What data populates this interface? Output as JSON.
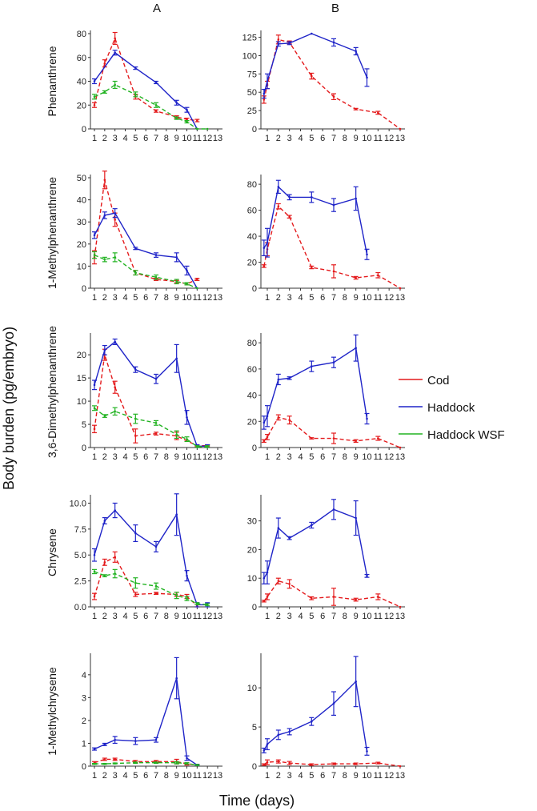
{
  "col_labels": [
    "A",
    "B"
  ],
  "ylabel": "Body burden (pg/embryo)",
  "xlabel": "Time (days)",
  "colors": {
    "Cod": "#e41a1c",
    "Haddock": "#1f24c8",
    "Haddock WSF": "#22b322"
  },
  "legend": [
    "Cod",
    "Haddock",
    "Haddock WSF"
  ],
  "chart_data": [
    {
      "type": "line",
      "row": "Phenanthrene",
      "panel": "A",
      "ylim": [
        0,
        80
      ],
      "yticks": [
        0,
        20,
        40,
        60,
        80
      ],
      "x_ticks": [
        "1",
        "2",
        "3",
        "4",
        "5",
        "6",
        "7",
        "8",
        "9",
        "10",
        "11",
        "12",
        "13"
      ],
      "series": [
        {
          "name": "Cod",
          "x": [
            1,
            2,
            3,
            5,
            7,
            9,
            10,
            11
          ],
          "y": [
            20,
            55,
            76,
            27,
            15,
            10,
            8,
            7
          ],
          "err": [
            2,
            3,
            5,
            2,
            1,
            1,
            1,
            1
          ]
        },
        {
          "name": "Haddock",
          "x": [
            1,
            3,
            5,
            7,
            9,
            10,
            11
          ],
          "y": [
            40,
            64,
            51,
            39,
            22,
            16,
            0
          ],
          "err": [
            2,
            2,
            1,
            1,
            2,
            2,
            0
          ]
        },
        {
          "name": "Haddock WSF",
          "x": [
            1,
            2,
            3,
            5,
            7,
            9,
            10,
            11,
            12
          ],
          "y": [
            27,
            31,
            37,
            29,
            20,
            9,
            6,
            0,
            0
          ],
          "err": [
            2,
            1,
            3,
            2,
            2,
            1,
            1,
            0,
            0
          ]
        }
      ]
    },
    {
      "type": "line",
      "row": "Phenanthrene",
      "panel": "B",
      "ylim": [
        0,
        130
      ],
      "yticks": [
        0,
        25,
        50,
        75,
        100,
        125
      ],
      "x_ticks": [
        "1",
        "2",
        "3",
        "4",
        "5",
        "6",
        "7",
        "8",
        "9",
        "10",
        "11",
        "12",
        "13"
      ],
      "series": [
        {
          "name": "Cod",
          "x": [
            0.7,
            1,
            2,
            3,
            5,
            7,
            9,
            11,
            13
          ],
          "y": [
            40,
            60,
            122,
            118,
            72,
            44,
            27,
            22,
            0
          ],
          "err": [
            5,
            5,
            6,
            2,
            4,
            4,
            1,
            2,
            0
          ]
        },
        {
          "name": "Haddock",
          "x": [
            0.7,
            1,
            2,
            3,
            5,
            7,
            9,
            10
          ],
          "y": [
            48,
            65,
            116,
            117,
            130,
            118,
            106,
            70
          ],
          "err": [
            6,
            10,
            3,
            2,
            0,
            5,
            5,
            12
          ]
        }
      ]
    },
    {
      "type": "line",
      "row": "1-Methylphenanthrene",
      "panel": "A",
      "ylim": [
        0,
        50
      ],
      "yticks": [
        0,
        10,
        20,
        30,
        40,
        50
      ],
      "x_ticks": [
        "1",
        "2",
        "3",
        "4",
        "5",
        "6",
        "7",
        "8",
        "9",
        "10",
        "11",
        "12",
        "13"
      ],
      "series": [
        {
          "name": "Cod",
          "x": [
            1,
            2,
            3,
            5,
            7,
            9,
            10,
            11
          ],
          "y": [
            14,
            49,
            31,
            7,
            4,
            3,
            2,
            4
          ],
          "err": [
            3,
            4,
            3,
            1,
            0.5,
            0.5,
            0.5,
            0.5
          ]
        },
        {
          "name": "Haddock",
          "x": [
            1,
            2,
            3,
            5,
            7,
            9,
            10,
            11
          ],
          "y": [
            24,
            33,
            34,
            18,
            15,
            14,
            8,
            0
          ],
          "err": [
            1.5,
            1.5,
            2,
            0.5,
            1,
            2,
            2,
            0
          ]
        },
        {
          "name": "Haddock WSF",
          "x": [
            1,
            2,
            3,
            5,
            7,
            9,
            10,
            11
          ],
          "y": [
            15,
            13,
            14,
            7,
            5,
            3,
            2,
            0
          ],
          "err": [
            1.5,
            1,
            2,
            1,
            1,
            1,
            0.5,
            0
          ]
        }
      ]
    },
    {
      "type": "line",
      "row": "1-Methylphenanthrene",
      "panel": "B",
      "ylim": [
        0,
        85
      ],
      "yticks": [
        0,
        20,
        40,
        60,
        80
      ],
      "x_ticks": [
        "1",
        "2",
        "3",
        "4",
        "5",
        "6",
        "7",
        "8",
        "9",
        "10",
        "11",
        "12",
        "13"
      ],
      "series": [
        {
          "name": "Cod",
          "x": [
            0.7,
            1,
            2,
            3,
            5,
            7,
            9,
            11,
            13
          ],
          "y": [
            17,
            30,
            63,
            55,
            16,
            13,
            8,
            10,
            0
          ],
          "err": [
            1,
            5,
            2,
            1,
            1,
            5,
            1,
            2,
            0
          ]
        },
        {
          "name": "Haddock",
          "x": [
            0.7,
            1,
            2,
            3,
            5,
            7,
            9,
            10
          ],
          "y": [
            31,
            35,
            78,
            70,
            70,
            64,
            69,
            26
          ],
          "err": [
            6,
            11,
            5,
            2,
            4,
            5,
            9,
            4
          ]
        }
      ]
    },
    {
      "type": "line",
      "row": "3,6-Dimethylphenanthrene",
      "panel": "A",
      "ylim": [
        0,
        24
      ],
      "yticks": [
        0,
        5,
        10,
        15,
        20
      ],
      "x_ticks": [
        "1",
        "2",
        "3",
        "4",
        "5",
        "6",
        "7",
        "8",
        "9",
        "10",
        "11",
        "12",
        "13"
      ],
      "series": [
        {
          "name": "Cod",
          "x": [
            1,
            2,
            3,
            5,
            7,
            9,
            11,
            12
          ],
          "y": [
            4,
            20,
            13,
            2.5,
            3,
            2.5,
            0.4,
            0.4
          ],
          "err": [
            0.8,
            1.2,
            1.3,
            1.5,
            0.3,
            0.8,
            0.2,
            0.2
          ]
        },
        {
          "name": "Haddock",
          "x": [
            1,
            2,
            3,
            5,
            7,
            9,
            10,
            11,
            12
          ],
          "y": [
            13.5,
            21,
            22.8,
            16.8,
            14.8,
            19.2,
            6.5,
            0.3,
            0.3
          ],
          "err": [
            1,
            1,
            0.6,
            0.6,
            1,
            3,
            1.5,
            0.3,
            0.3
          ]
        },
        {
          "name": "Haddock WSF",
          "x": [
            1,
            2,
            3,
            5,
            7,
            9,
            10,
            11,
            12
          ],
          "y": [
            8.5,
            6.8,
            7.8,
            6.2,
            5.3,
            2.8,
            1.8,
            0.2,
            0.2
          ],
          "err": [
            0.5,
            0.3,
            0.8,
            1,
            0.5,
            0.8,
            0.5,
            0.2,
            0.2
          ]
        }
      ]
    },
    {
      "type": "line",
      "row": "3,6-Dimethylphenanthrene",
      "panel": "B",
      "ylim": [
        0,
        85
      ],
      "yticks": [
        0,
        20,
        40,
        60,
        80
      ],
      "x_ticks": [
        "1",
        "2",
        "3",
        "4",
        "5",
        "6",
        "7",
        "8",
        "9",
        "10",
        "11",
        "12",
        "13"
      ],
      "series": [
        {
          "name": "Cod",
          "x": [
            0.7,
            1,
            2,
            3,
            5,
            7,
            9,
            11,
            13
          ],
          "y": [
            5,
            8,
            23,
            21,
            7,
            7,
            5,
            7,
            0
          ],
          "err": [
            1,
            2,
            2,
            3,
            0.5,
            4,
            1,
            1.5,
            0
          ]
        },
        {
          "name": "Haddock",
          "x": [
            0.7,
            1,
            2,
            3,
            5,
            7,
            9,
            10
          ],
          "y": [
            19,
            24,
            52,
            53,
            62,
            65,
            76,
            22
          ],
          "err": [
            5,
            8,
            4,
            1,
            4,
            4,
            10,
            4
          ]
        }
      ]
    },
    {
      "type": "line",
      "row": "Chrysene",
      "panel": "A",
      "ylim": [
        0,
        10.5
      ],
      "yticks": [
        0.0,
        2.5,
        5.0,
        7.5,
        10.0
      ],
      "x_ticks": [
        "1",
        "2",
        "3",
        "4",
        "5",
        "6",
        "7",
        "8",
        "9",
        "10",
        "11",
        "12",
        "13"
      ],
      "series": [
        {
          "name": "Cod",
          "x": [
            1,
            2,
            3,
            5,
            7,
            9,
            10,
            11
          ],
          "y": [
            1.0,
            4.3,
            4.8,
            1.2,
            1.3,
            1.2,
            1.0,
            0.1
          ],
          "err": [
            0.3,
            0.3,
            0.5,
            0.2,
            0.1,
            0.2,
            0.2,
            0.1
          ]
        },
        {
          "name": "Haddock",
          "x": [
            1,
            2,
            3,
            5,
            7,
            9,
            10,
            11,
            12
          ],
          "y": [
            5.0,
            8.3,
            9.3,
            7.1,
            5.8,
            8.9,
            3.0,
            0.2,
            0.2
          ],
          "err": [
            0.6,
            0.3,
            0.7,
            0.8,
            0.5,
            2,
            0.5,
            0.2,
            0.2
          ]
        },
        {
          "name": "Haddock WSF",
          "x": [
            1,
            2,
            3,
            5,
            7,
            9,
            10,
            11,
            12
          ],
          "y": [
            3.4,
            3.0,
            3.2,
            2.3,
            2.0,
            1.1,
            0.8,
            0.3,
            0.2
          ],
          "err": [
            0.2,
            0.1,
            0.4,
            0.5,
            0.3,
            0.3,
            0.2,
            0.1,
            0.1
          ]
        }
      ]
    },
    {
      "type": "line",
      "row": "Chrysene",
      "panel": "B",
      "ylim": [
        0,
        38
      ],
      "yticks": [
        0,
        10,
        20,
        30
      ],
      "x_ticks": [
        "1",
        "2",
        "3",
        "4",
        "5",
        "6",
        "7",
        "8",
        "9",
        "10",
        "11",
        "12",
        "13"
      ],
      "series": [
        {
          "name": "Cod",
          "x": [
            0.7,
            1,
            2,
            3,
            5,
            7,
            9,
            11,
            13
          ],
          "y": [
            2,
            3.5,
            9,
            8,
            3,
            3.5,
            2.5,
            3.5,
            0
          ],
          "err": [
            0.3,
            1,
            1,
            1.5,
            0.5,
            3,
            0.5,
            1,
            0
          ]
        },
        {
          "name": "Haddock",
          "x": [
            0.7,
            1,
            2,
            3,
            5,
            7,
            9,
            10
          ],
          "y": [
            10,
            12,
            27.5,
            24,
            28.5,
            34,
            31,
            10.8
          ],
          "err": [
            2,
            4,
            3.5,
            0.5,
            1,
            3.5,
            6,
            0.5
          ]
        }
      ]
    },
    {
      "type": "line",
      "row": "1-Methylchrysene",
      "panel": "A",
      "ylim": [
        0,
        4.8
      ],
      "yticks": [
        0,
        1,
        2,
        3,
        4
      ],
      "x_ticks": [
        "1",
        "2",
        "3",
        "4",
        "5",
        "6",
        "7",
        "8",
        "9",
        "10",
        "11",
        "12",
        "13"
      ],
      "series": [
        {
          "name": "Cod",
          "x": [
            1,
            2,
            3,
            5,
            7,
            9,
            10,
            11
          ],
          "y": [
            0.15,
            0.3,
            0.3,
            0.2,
            0.2,
            0.2,
            0.1,
            0.05
          ],
          "err": [
            0.05,
            0.05,
            0.05,
            0.05,
            0.05,
            0.1,
            0.05,
            0.03
          ]
        },
        {
          "name": "Haddock",
          "x": [
            1,
            2,
            3,
            5,
            7,
            9,
            10,
            11
          ],
          "y": [
            0.75,
            0.95,
            1.15,
            1.1,
            1.15,
            3.85,
            0.35,
            0.05
          ],
          "err": [
            0.05,
            0.05,
            0.15,
            0.15,
            0.1,
            0.9,
            0.1,
            0.03
          ]
        },
        {
          "name": "Haddock WSF",
          "x": [
            1,
            2,
            3,
            5,
            7,
            9,
            10,
            11
          ],
          "y": [
            0.1,
            0.1,
            0.12,
            0.15,
            0.15,
            0.15,
            0.12,
            0.05
          ],
          "err": [
            0.02,
            0.02,
            0.02,
            0.03,
            0.03,
            0.05,
            0.03,
            0.02
          ]
        }
      ]
    },
    {
      "type": "line",
      "row": "1-Methylchrysene",
      "panel": "B",
      "ylim": [
        0,
        14
      ],
      "yticks": [
        0,
        5,
        10
      ],
      "x_ticks": [
        "1",
        "2",
        "3",
        "4",
        "5",
        "6",
        "7",
        "8",
        "9",
        "10",
        "11",
        "12",
        "13"
      ],
      "series": [
        {
          "name": "Cod",
          "x": [
            0.7,
            1,
            2,
            3,
            5,
            7,
            9,
            11,
            13
          ],
          "y": [
            0.2,
            0.5,
            0.6,
            0.4,
            0.2,
            0.3,
            0.3,
            0.4,
            0
          ],
          "err": [
            0.1,
            0.3,
            0.2,
            0.2,
            0.1,
            0.1,
            0.1,
            0.1,
            0
          ]
        },
        {
          "name": "Haddock",
          "x": [
            0.7,
            1,
            2,
            3,
            5,
            7,
            9,
            10
          ],
          "y": [
            2,
            2.8,
            4,
            4.4,
            5.7,
            8,
            10.8,
            1.9
          ],
          "err": [
            0.3,
            0.7,
            0.6,
            0.4,
            0.5,
            1.5,
            3.2,
            0.5
          ]
        }
      ]
    }
  ]
}
